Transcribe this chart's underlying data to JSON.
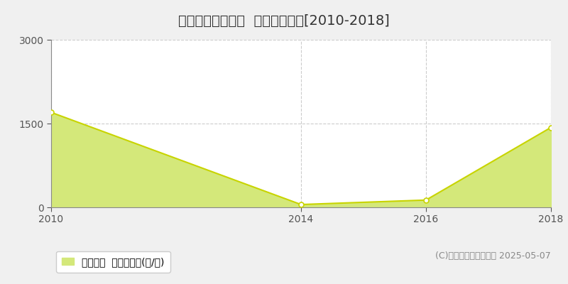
{
  "title": "中川郡幕別町日新  林地価格推移[2010-2018]",
  "years": [
    2010,
    2014,
    2016,
    2018
  ],
  "values": [
    1700,
    50,
    130,
    1430
  ],
  "ylim": [
    0,
    3000
  ],
  "yticks": [
    0,
    1500,
    3000
  ],
  "xticks": [
    2010,
    2014,
    2016,
    2018
  ],
  "xlim": [
    2010,
    2018
  ],
  "line_color": "#c8d400",
  "fill_color": "#d4e87a",
  "marker_color": "#ffffff",
  "marker_edge_color": "#c8d400",
  "grid_color": "#cccccc",
  "bg_color": "#f0f0f0",
  "plot_bg_color": "#ffffff",
  "legend_label": "林地価格  平均坪単価(円/坪)",
  "copyright_text": "(C)土地価格ドットコム 2025-05-07",
  "title_fontsize": 14,
  "tick_fontsize": 10,
  "legend_fontsize": 10,
  "copyright_fontsize": 9
}
